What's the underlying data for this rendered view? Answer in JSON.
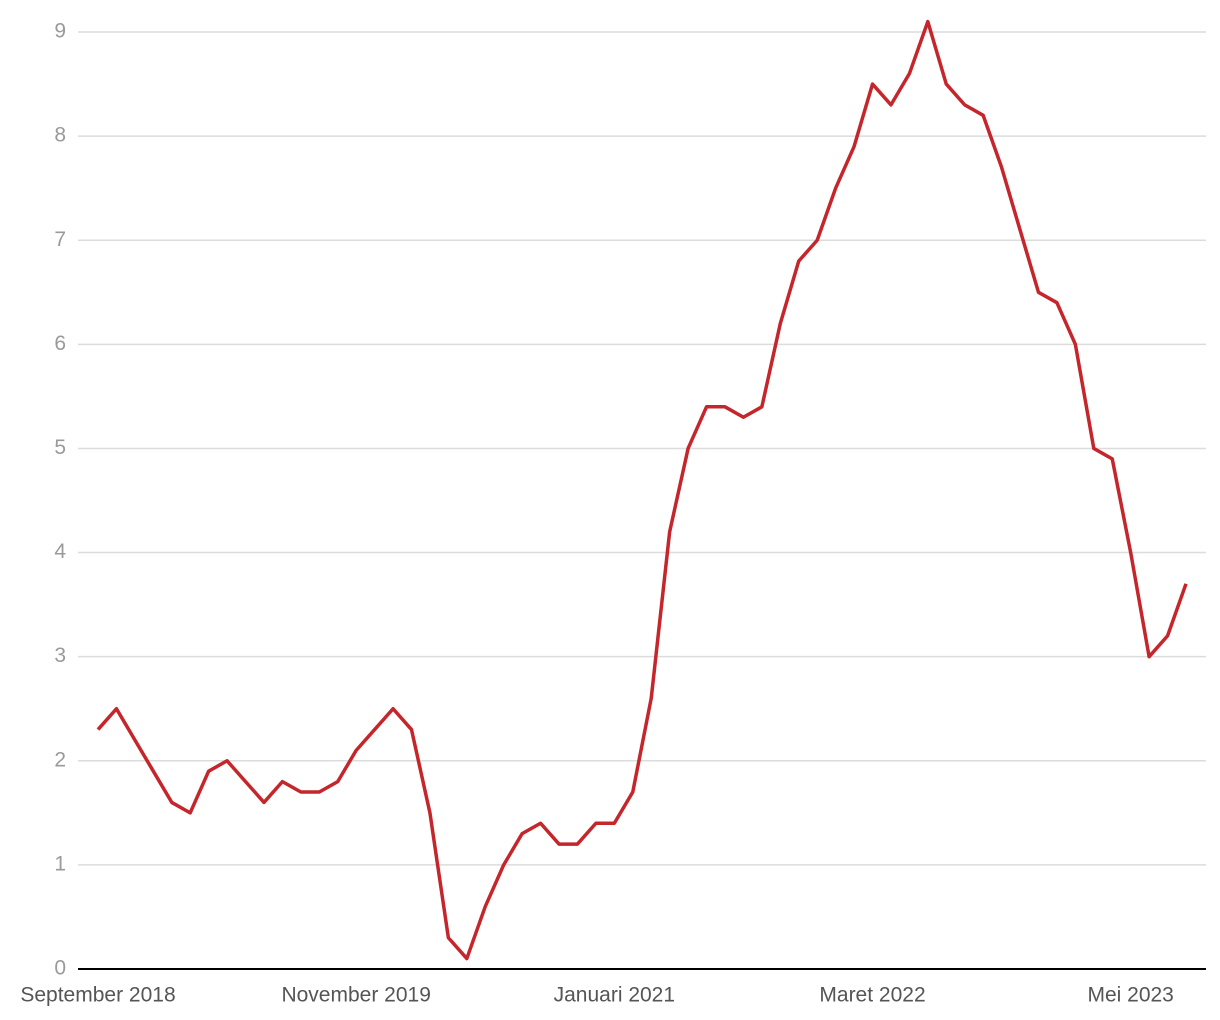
{
  "chart_data": {
    "type": "line",
    "categories": [
      "September 2018",
      null,
      null,
      null,
      null,
      null,
      null,
      null,
      null,
      null,
      null,
      null,
      null,
      null,
      "November 2019",
      null,
      null,
      null,
      null,
      null,
      null,
      null,
      null,
      null,
      null,
      null,
      null,
      null,
      "Januari 2021",
      null,
      null,
      null,
      null,
      null,
      null,
      null,
      null,
      null,
      null,
      null,
      null,
      null,
      "Maret 2022",
      null,
      null,
      null,
      null,
      null,
      null,
      null,
      null,
      null,
      null,
      null,
      null,
      null,
      "Mei 2023",
      null,
      null,
      null
    ],
    "series": [
      {
        "color": "#c4262b",
        "values": [
          2.3,
          2.5,
          2.2,
          1.9,
          1.6,
          1.5,
          1.9,
          2.0,
          1.8,
          1.6,
          1.8,
          1.7,
          1.7,
          1.8,
          2.1,
          2.3,
          2.5,
          2.3,
          1.5,
          0.3,
          0.1,
          0.6,
          1.0,
          1.3,
          1.4,
          1.2,
          1.2,
          1.4,
          1.4,
          1.7,
          2.6,
          4.2,
          5.0,
          5.4,
          5.4,
          5.3,
          5.4,
          6.2,
          6.8,
          7.0,
          7.5,
          7.9,
          8.5,
          8.3,
          8.6,
          9.1,
          8.5,
          8.3,
          8.2,
          7.7,
          7.1,
          6.5,
          6.4,
          6.0,
          5.0,
          4.9,
          4.0,
          3.0,
          3.2,
          3.7
        ]
      }
    ],
    "ylim": [
      0,
      9.1
    ],
    "yticks": [
      0,
      1,
      2,
      3,
      4,
      5,
      6,
      7,
      8,
      9
    ],
    "grid": true
  }
}
